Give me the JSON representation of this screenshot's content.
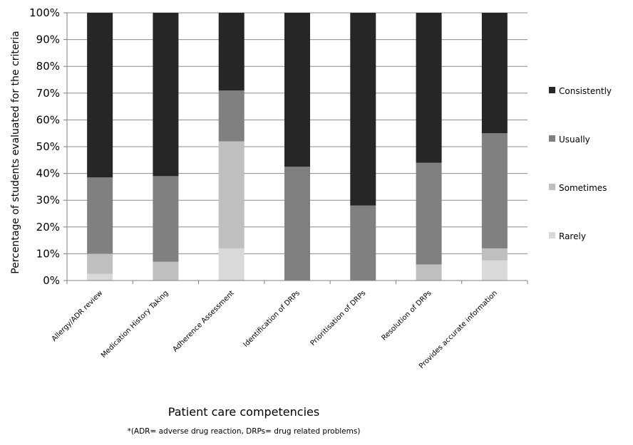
{
  "chart_data": {
    "type": "bar",
    "stacked": true,
    "percent": true,
    "categories": [
      "Allergy/ADR review",
      "Medication History Taking",
      "Adherence Assessment",
      "Identification of DRPs",
      "Prioritisation of DRPs",
      "Resolution of DRPs",
      "Provides accurate information"
    ],
    "series": [
      {
        "name": "Rarely",
        "color": "#d9d9d9",
        "values": [
          2.5,
          0,
          12,
          0,
          0,
          0,
          7.5
        ]
      },
      {
        "name": "Sometimes",
        "color": "#bfbfbf",
        "values": [
          7.5,
          7,
          40,
          0,
          0,
          6,
          4.5
        ]
      },
      {
        "name": "Usually",
        "color": "#808080",
        "values": [
          28.5,
          32,
          19,
          42.5,
          28,
          38,
          43
        ]
      },
      {
        "name": "Consistently",
        "color": "#262626",
        "values": [
          61.5,
          61,
          29,
          57.5,
          72,
          56,
          45
        ]
      }
    ],
    "yticks": [
      "0%",
      "10%",
      "20%",
      "30%",
      "40%",
      "50%",
      "60%",
      "70%",
      "80%",
      "90%",
      "100%"
    ],
    "ylim": [
      0,
      100
    ],
    "ylabel": "Percentage of students evaluated for the criteria",
    "xlabel": "Patient care competencies",
    "footnote": "*(ADR= adverse drug reaction, DRPs= drug related problems)",
    "legend_position": "right",
    "legend_order": [
      "Consistently",
      "Usually",
      "Sometimes",
      "Rarely"
    ],
    "grid": true
  }
}
